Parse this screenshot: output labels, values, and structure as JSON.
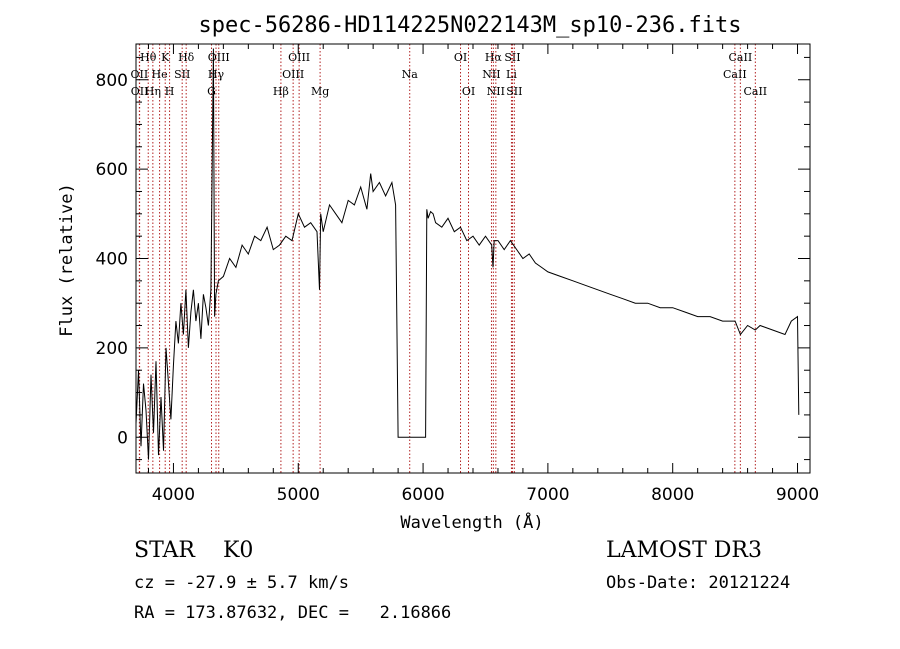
{
  "chart_data": {
    "type": "line",
    "title": "spec-56286-HD114225N022143M_sp10-236.fits",
    "xlabel": "Wavelength (Å)",
    "ylabel": "Flux (relative)",
    "xlim": [
      3700,
      9100
    ],
    "ylim": [
      -80,
      880
    ],
    "xticks": [
      4000,
      5000,
      6000,
      7000,
      8000,
      9000
    ],
    "xtick_labels": [
      "4000",
      "5000",
      "6000",
      "7000",
      "8000",
      "9000"
    ],
    "yticks": [
      0,
      200,
      400,
      600,
      800
    ],
    "ytick_labels": [
      "0",
      "200",
      "400",
      "600",
      "800"
    ],
    "series": [
      {
        "name": "flux",
        "x": [
          3700,
          3720,
          3740,
          3760,
          3780,
          3800,
          3820,
          3840,
          3860,
          3880,
          3900,
          3920,
          3940,
          3960,
          3980,
          4000,
          4020,
          4040,
          4060,
          4080,
          4100,
          4120,
          4140,
          4160,
          4180,
          4200,
          4220,
          4240,
          4260,
          4280,
          4300,
          4320,
          4330,
          4340,
          4360,
          4400,
          4450,
          4500,
          4550,
          4600,
          4650,
          4700,
          4750,
          4800,
          4850,
          4900,
          4950,
          5000,
          5050,
          5100,
          5150,
          5170,
          5180,
          5200,
          5250,
          5300,
          5350,
          5400,
          5450,
          5500,
          5550,
          5580,
          5600,
          5650,
          5700,
          5750,
          5780,
          5800,
          5830,
          5850,
          5880,
          5900,
          5950,
          6000,
          6020,
          6030,
          6040,
          6060,
          6080,
          6100,
          6150,
          6200,
          6250,
          6300,
          6350,
          6400,
          6450,
          6500,
          6550,
          6560,
          6570,
          6600,
          6650,
          6700,
          6750,
          6800,
          6850,
          6900,
          6950,
          7000,
          7100,
          7200,
          7300,
          7400,
          7500,
          7600,
          7700,
          7800,
          7900,
          8000,
          8100,
          8200,
          8300,
          8400,
          8500,
          8542,
          8600,
          8662,
          8700,
          8800,
          8900,
          8950,
          9000,
          9010
        ],
        "y": [
          30,
          150,
          -20,
          120,
          60,
          -50,
          140,
          10,
          170,
          -40,
          90,
          -30,
          200,
          120,
          40,
          160,
          260,
          210,
          300,
          230,
          330,
          200,
          280,
          330,
          260,
          300,
          220,
          320,
          290,
          250,
          330,
          870,
          270,
          320,
          350,
          360,
          400,
          380,
          430,
          410,
          450,
          440,
          470,
          420,
          430,
          450,
          440,
          500,
          470,
          480,
          460,
          330,
          500,
          460,
          520,
          500,
          480,
          530,
          520,
          560,
          510,
          590,
          550,
          570,
          540,
          570,
          520,
          0,
          0,
          0,
          0,
          0,
          0,
          0,
          0,
          510,
          490,
          505,
          500,
          480,
          470,
          490,
          460,
          470,
          440,
          450,
          430,
          450,
          430,
          380,
          440,
          440,
          420,
          440,
          420,
          400,
          410,
          390,
          380,
          370,
          360,
          350,
          340,
          330,
          320,
          310,
          300,
          300,
          290,
          290,
          280,
          270,
          270,
          260,
          260,
          230,
          250,
          240,
          250,
          240,
          230,
          260,
          270,
          50
        ],
        "color": "#000000"
      }
    ],
    "lines": [
      {
        "name": "OII",
        "wavelength": 3727,
        "row": 2
      },
      {
        "name": "OII",
        "wavelength": 3729,
        "row": 3
      },
      {
        "name": "Hθ",
        "wavelength": 3798,
        "row": 1
      },
      {
        "name": "He",
        "wavelength": 3889,
        "row": 2
      },
      {
        "name": "Hη",
        "wavelength": 3835,
        "row": 3
      },
      {
        "name": "K",
        "wavelength": 3934,
        "row": 1
      },
      {
        "name": "SII",
        "wavelength": 4070,
        "row": 2
      },
      {
        "name": "H",
        "wavelength": 3969,
        "row": 3
      },
      {
        "name": "Hδ",
        "wavelength": 4102,
        "row": 1
      },
      {
        "name": "OIII",
        "wavelength": 4363,
        "row": 1
      },
      {
        "name": "Hγ",
        "wavelength": 4341,
        "row": 2
      },
      {
        "name": "G",
        "wavelength": 4305,
        "row": 3
      },
      {
        "name": "Hβ",
        "wavelength": 4861,
        "row": 3
      },
      {
        "name": "OIII",
        "wavelength": 5007,
        "row": 1
      },
      {
        "name": "OIII",
        "wavelength": 4959,
        "row": 2
      },
      {
        "name": "Mg",
        "wavelength": 5175,
        "row": 3
      },
      {
        "name": "Na",
        "wavelength": 5893,
        "row": 2
      },
      {
        "name": "OI",
        "wavelength": 6300,
        "row": 1
      },
      {
        "name": "OI",
        "wavelength": 6364,
        "row": 3
      },
      {
        "name": "Hα",
        "wavelength": 6563,
        "row": 1
      },
      {
        "name": "NII",
        "wavelength": 6548,
        "row": 2
      },
      {
        "name": "NII",
        "wavelength": 6583,
        "row": 3
      },
      {
        "name": "SII",
        "wavelength": 6716,
        "row": 1
      },
      {
        "name": "Li",
        "wavelength": 6708,
        "row": 2
      },
      {
        "name": "SII",
        "wavelength": 6731,
        "row": 3
      },
      {
        "name": "CaII",
        "wavelength": 8542,
        "row": 1
      },
      {
        "name": "CaII",
        "wavelength": 8498,
        "row": 2
      },
      {
        "name": "CaII",
        "wavelength": 8662,
        "row": 3
      }
    ],
    "colors": {
      "axes": "#000000",
      "line_markers": "#b22222",
      "spectrum": "#000000"
    }
  },
  "info": {
    "star_type": "STAR    K0",
    "release": "LAMOST DR3",
    "cz": "cz = -27.9 ± 5.7 km/s",
    "obs_date": "Obs-Date: 20121224",
    "radec": "RA = 173.87632, DEC =   2.16866"
  }
}
